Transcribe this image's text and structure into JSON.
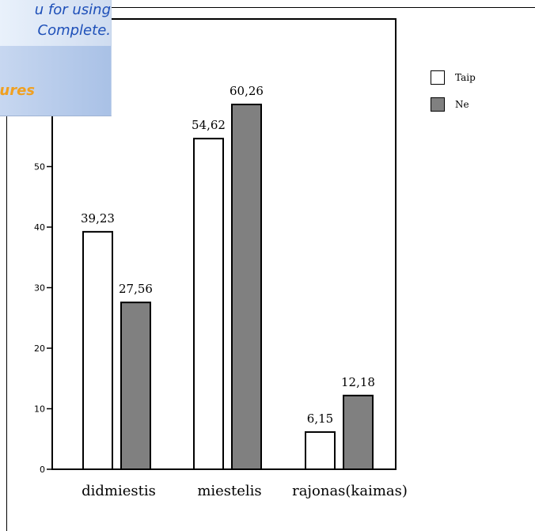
{
  "banner": {
    "line1": "u for using",
    "line2": "Complete.",
    "line3": "ures"
  },
  "chart_data": {
    "type": "bar",
    "categories": [
      "didmiestis",
      "miestelis",
      "rajonas(kaimas)"
    ],
    "series": [
      {
        "name": "Taip",
        "values": [
          39.23,
          54.62,
          6.15
        ],
        "labels": [
          "39,23",
          "54,62",
          "6,15"
        ],
        "color": "#ffffff"
      },
      {
        "name": "Ne",
        "values": [
          27.56,
          60.26,
          12.18
        ],
        "labels": [
          "27,56",
          "60,26",
          "12,18"
        ],
        "color": "#808080"
      }
    ],
    "yticks": [
      "0",
      "10",
      "20",
      "30",
      "40",
      "50"
    ],
    "ylim": [
      0,
      70
    ],
    "legend_position": "right",
    "title": "",
    "xlabel": "",
    "ylabel": ""
  }
}
